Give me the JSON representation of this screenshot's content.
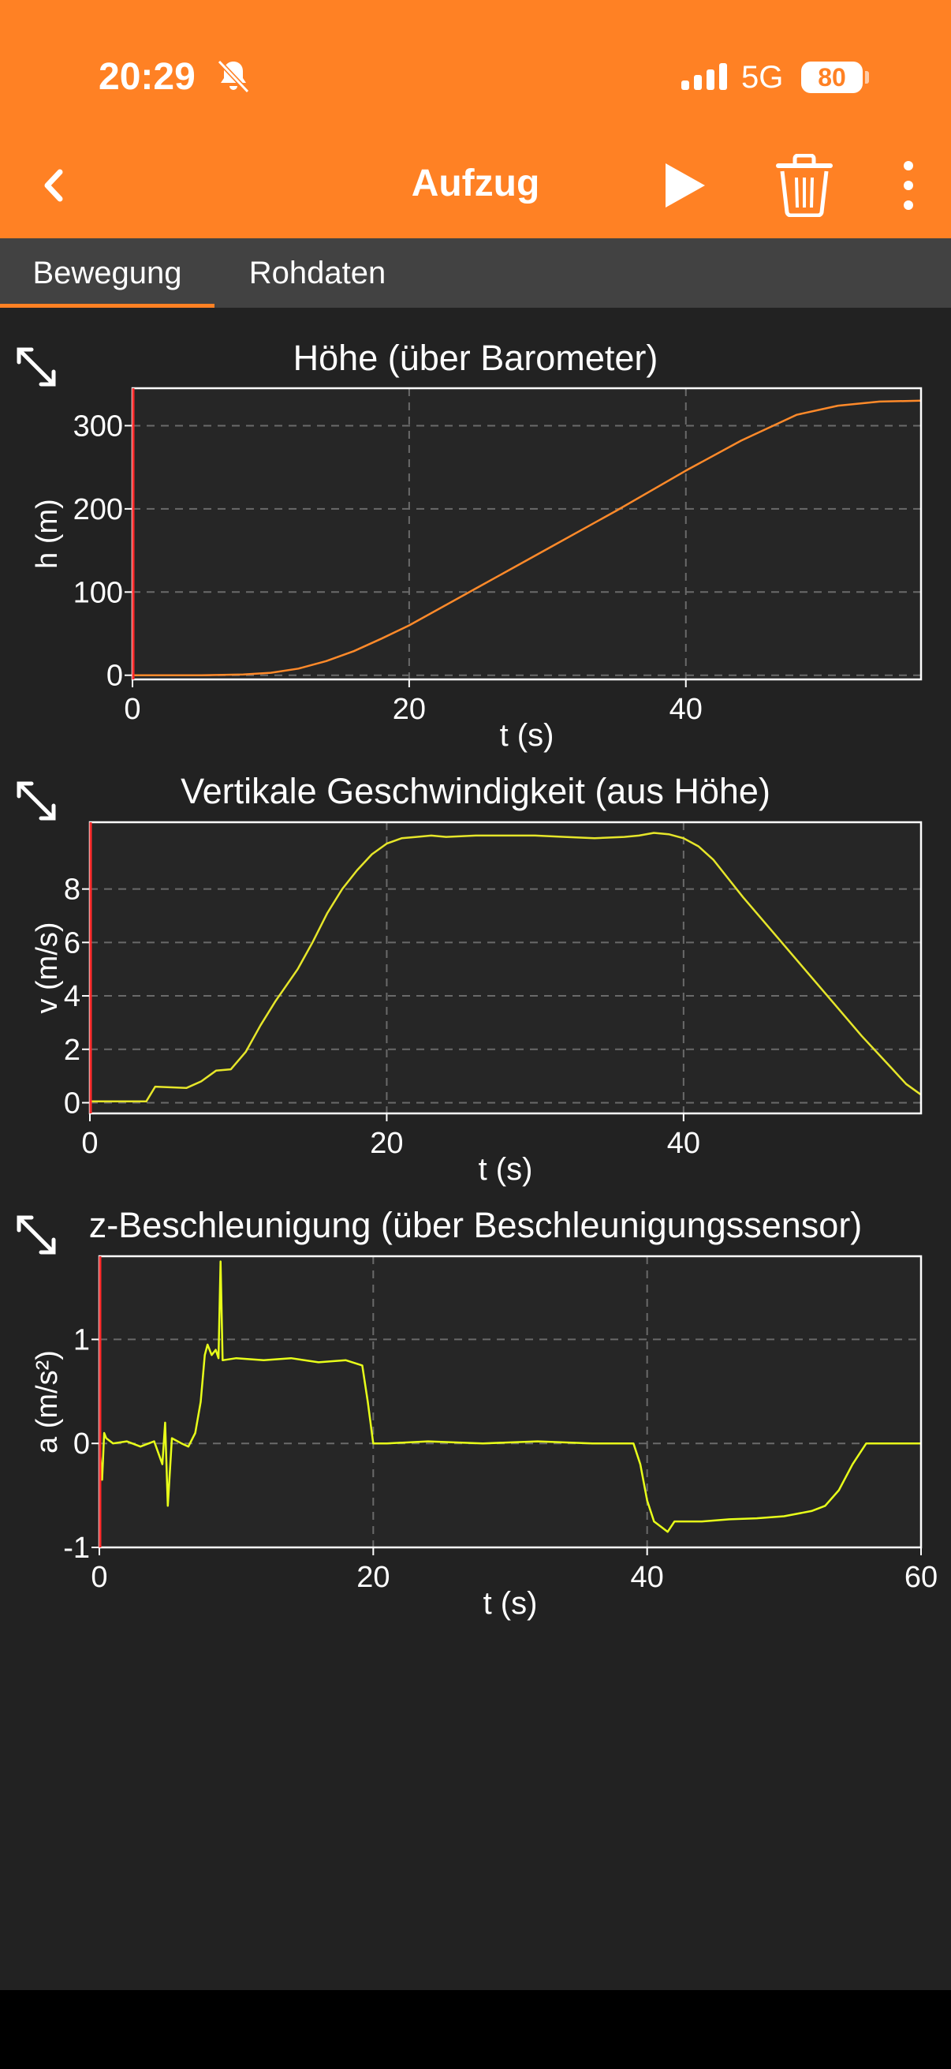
{
  "status_bar": {
    "time": "20:29",
    "network": "5G",
    "battery": "80",
    "icons": [
      "bell-slash-icon",
      "signal-icon",
      "battery-icon"
    ]
  },
  "toolbar": {
    "title": "Aufzug",
    "icons": [
      "chevron-left-icon",
      "play-icon",
      "trash-icon",
      "more-vertical-icon"
    ]
  },
  "tabs": [
    {
      "label": "Bewegung",
      "active": true
    },
    {
      "label": "Rohdaten",
      "active": false
    }
  ],
  "colors": {
    "accent": "#FF8124",
    "background": "#222222",
    "tab_bar": "#424242",
    "plot_background": "#262626",
    "height_line": "#FF8A2A",
    "velocity_line": "#E6E62A",
    "acceleration_line": "#E8FF1A",
    "time_marker": "#FF2A2A"
  },
  "chart_data": [
    {
      "type": "line",
      "title": "Höhe (über Barometer)",
      "xlabel": "t (s)",
      "ylabel": "h (m)",
      "xlim": [
        0,
        57
      ],
      "ylim": [
        -5,
        345
      ],
      "xticks": [
        0,
        20,
        40
      ],
      "yticks": [
        0,
        100,
        200,
        300
      ],
      "grid": true,
      "series": [
        {
          "color": "#FF8A2A",
          "x": [
            0,
            5,
            8,
            10,
            12,
            14,
            16,
            18,
            20,
            25,
            30,
            35,
            40,
            44,
            48,
            51,
            54,
            57
          ],
          "y": [
            0,
            0,
            1,
            3,
            8,
            17,
            29,
            44,
            60,
            106,
            152,
            198,
            246,
            282,
            313,
            324,
            329,
            330
          ]
        }
      ]
    },
    {
      "type": "line",
      "title": "Vertikale Geschwindigkeit (aus Höhe)",
      "xlabel": "t (s)",
      "ylabel": "v (m/s)",
      "xlim": [
        0,
        56
      ],
      "ylim": [
        -0.4,
        10.5
      ],
      "xticks": [
        0,
        20,
        40
      ],
      "yticks": [
        0,
        2,
        4,
        6,
        8
      ],
      "grid": true,
      "series": [
        {
          "color": "#E6E62A",
          "x": [
            0,
            3.8,
            4.4,
            6.5,
            7.5,
            8.5,
            9.5,
            10.5,
            11.5,
            12.5,
            14,
            15,
            16,
            17,
            18,
            19,
            20,
            21,
            22,
            23,
            24,
            26,
            28,
            30,
            32,
            34,
            36,
            37,
            38,
            39,
            40,
            41,
            42,
            43,
            44,
            46,
            48,
            50,
            52,
            54,
            55,
            56
          ],
          "y": [
            0.05,
            0.05,
            0.6,
            0.55,
            0.8,
            1.2,
            1.25,
            1.9,
            2.9,
            3.8,
            5.0,
            6.0,
            7.1,
            8.0,
            8.7,
            9.3,
            9.7,
            9.9,
            9.95,
            10.0,
            9.95,
            10.0,
            10.0,
            10.0,
            9.95,
            9.9,
            9.95,
            10.0,
            10.1,
            10.05,
            9.9,
            9.6,
            9.1,
            8.4,
            7.7,
            6.4,
            5.1,
            3.8,
            2.5,
            1.3,
            0.7,
            0.3
          ]
        }
      ]
    },
    {
      "type": "line",
      "title": "z-Beschleunigung (über Beschleunigungssensor)",
      "xlabel": "t (s)",
      "ylabel": "a (m/s²)",
      "xlim": [
        0,
        60
      ],
      "ylim": [
        -1,
        1.8
      ],
      "xticks": [
        0,
        20,
        40,
        60
      ],
      "yticks": [
        -1,
        0,
        1
      ],
      "grid": true,
      "series": [
        {
          "color": "#E8FF1A",
          "x": [
            0,
            0.2,
            0.35,
            0.5,
            1,
            2,
            3,
            4,
            4.6,
            4.8,
            5,
            5.3,
            6,
            6.5,
            7,
            7.4,
            7.7,
            7.9,
            8.2,
            8.5,
            8.7,
            8.85,
            9,
            10,
            12,
            14,
            16,
            18,
            19.2,
            19.6,
            20,
            21,
            24,
            28,
            32,
            36,
            39,
            39.5,
            40,
            40.5,
            41,
            41.5,
            42,
            44,
            46,
            48,
            50,
            52,
            53,
            54,
            55,
            56,
            58,
            60
          ],
          "y": [
            0,
            -0.35,
            0.1,
            0.05,
            0,
            0.02,
            -0.03,
            0.02,
            -0.2,
            0.2,
            -0.6,
            0.05,
            0,
            -0.03,
            0.1,
            0.4,
            0.85,
            0.95,
            0.85,
            0.9,
            0.82,
            1.75,
            0.8,
            0.82,
            0.8,
            0.82,
            0.78,
            0.8,
            0.75,
            0.4,
            0.0,
            0.0,
            0.02,
            0.0,
            0.02,
            0.0,
            0.0,
            -0.2,
            -0.55,
            -0.75,
            -0.8,
            -0.85,
            -0.75,
            -0.75,
            -0.73,
            -0.72,
            -0.7,
            -0.65,
            -0.6,
            -0.45,
            -0.2,
            0.0,
            0.0,
            0.0
          ]
        }
      ]
    }
  ]
}
